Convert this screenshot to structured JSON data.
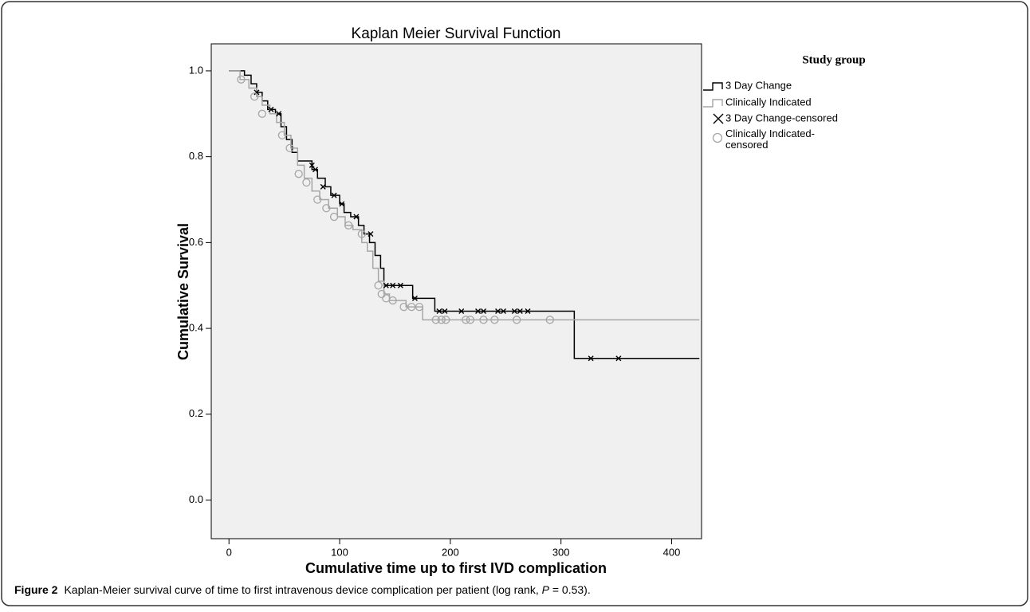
{
  "chart_data": {
    "type": "step",
    "title": "Kaplan Meier Survival Function",
    "x_label": "Cumulative time up to first IVD complication",
    "y_label": "Cumulative Survival",
    "legend_title": "Study group",
    "xlim": [
      -16,
      427
    ],
    "ylim": [
      -0.09,
      1.063
    ],
    "xticks": [
      0,
      100,
      200,
      300,
      400
    ],
    "yticks": [
      {
        "value": 0,
        "label": "0.0"
      },
      0.2,
      0.4,
      0.6,
      0.8,
      {
        "value": 1,
        "label": "1.0"
      }
    ],
    "series": [
      {
        "name": "3 Day Change",
        "color": "#000000",
        "style": "step",
        "x": [
          0,
          14,
          20,
          25,
          30,
          35,
          42,
          47,
          52,
          57,
          62,
          75,
          80,
          87,
          92,
          100,
          104,
          110,
          117,
          122,
          127,
          132,
          137,
          140,
          166,
          186,
          312,
          425
        ],
        "values": [
          1.0,
          0.99,
          0.97,
          0.95,
          0.93,
          0.91,
          0.9,
          0.87,
          0.84,
          0.81,
          0.79,
          0.77,
          0.75,
          0.73,
          0.71,
          0.69,
          0.67,
          0.66,
          0.64,
          0.62,
          0.6,
          0.57,
          0.54,
          0.5,
          0.47,
          0.44,
          0.33,
          0.33
        ]
      },
      {
        "name": "Clinically Indicated",
        "color": "#a6a6a6",
        "style": "step",
        "x": [
          0,
          10,
          18,
          25,
          30,
          37,
          43,
          50,
          56,
          62,
          68,
          75,
          82,
          90,
          98,
          105,
          112,
          120,
          125,
          130,
          135,
          140,
          145,
          160,
          175,
          425
        ],
        "values": [
          1.0,
          0.98,
          0.96,
          0.94,
          0.92,
          0.9,
          0.88,
          0.85,
          0.82,
          0.78,
          0.75,
          0.72,
          0.7,
          0.68,
          0.66,
          0.64,
          0.63,
          0.6,
          0.58,
          0.54,
          0.51,
          0.48,
          0.465,
          0.45,
          0.42,
          0.42
        ]
      },
      {
        "name": "3 Day Change-censored",
        "color": "#000000",
        "marker": "x",
        "x": [
          25,
          38,
          45,
          75,
          78,
          85,
          95,
          102,
          115,
          128,
          142,
          148,
          155,
          168,
          190,
          195,
          210,
          225,
          230,
          243,
          248,
          258,
          263,
          270,
          327,
          352
        ],
        "values": [
          0.95,
          0.91,
          0.9,
          0.78,
          0.77,
          0.73,
          0.71,
          0.69,
          0.66,
          0.62,
          0.5,
          0.5,
          0.5,
          0.47,
          0.44,
          0.44,
          0.44,
          0.44,
          0.44,
          0.44,
          0.44,
          0.44,
          0.44,
          0.44,
          0.33,
          0.33
        ]
      },
      {
        "name": "Clinically Indicated-censored",
        "color": "#a6a6a6",
        "marker": "circle",
        "x": [
          11,
          23,
          30,
          48,
          55,
          63,
          70,
          80,
          88,
          95,
          108,
          120,
          135,
          138,
          142,
          148,
          158,
          165,
          172,
          187,
          192,
          196,
          214,
          218,
          230,
          240,
          260,
          290
        ],
        "values": [
          0.98,
          0.94,
          0.9,
          0.85,
          0.82,
          0.76,
          0.74,
          0.7,
          0.68,
          0.66,
          0.64,
          0.62,
          0.5,
          0.48,
          0.47,
          0.465,
          0.45,
          0.45,
          0.45,
          0.42,
          0.42,
          0.42,
          0.42,
          0.42,
          0.42,
          0.42,
          0.42,
          0.42
        ]
      }
    ]
  },
  "caption": {
    "label": "Figure 2",
    "text_before": "Kaplan-Meier survival curve of time to first intravenous device complication per patient (log rank, ",
    "italic": "P",
    "text_after": " = 0.53)."
  }
}
